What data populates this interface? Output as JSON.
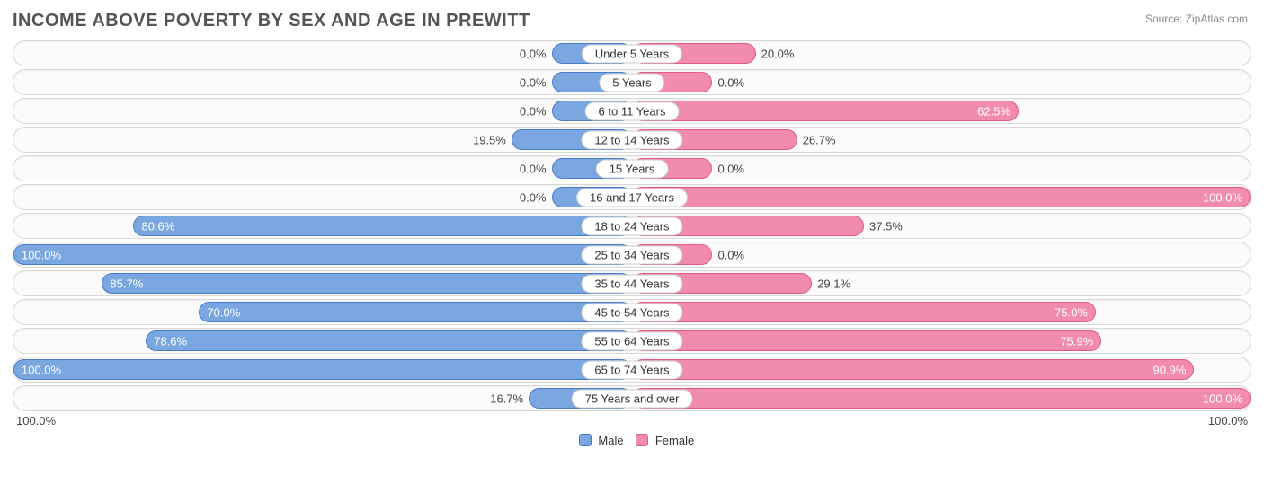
{
  "title": "INCOME ABOVE POVERTY BY SEX AND AGE IN PREWITT",
  "source": "Source: ZipAtlas.com",
  "colors": {
    "male_fill": "#7ba7e0",
    "male_border": "#4a7bc8",
    "female_fill": "#f28bb0",
    "female_border": "#e05a8a",
    "text": "#444444",
    "text_inside": "#ffffff"
  },
  "legend": {
    "male": "Male",
    "female": "Female"
  },
  "axis": {
    "left": "100.0%",
    "right": "100.0%"
  },
  "min_bar_pct": 13,
  "rows": [
    {
      "label": "Under 5 Years",
      "male": 0.0,
      "female": 20.0
    },
    {
      "label": "5 Years",
      "male": 0.0,
      "female": 0.0
    },
    {
      "label": "6 to 11 Years",
      "male": 0.0,
      "female": 62.5
    },
    {
      "label": "12 to 14 Years",
      "male": 19.5,
      "female": 26.7
    },
    {
      "label": "15 Years",
      "male": 0.0,
      "female": 0.0
    },
    {
      "label": "16 and 17 Years",
      "male": 0.0,
      "female": 100.0
    },
    {
      "label": "18 to 24 Years",
      "male": 80.6,
      "female": 37.5
    },
    {
      "label": "25 to 34 Years",
      "male": 100.0,
      "female": 0.0
    },
    {
      "label": "35 to 44 Years",
      "male": 85.7,
      "female": 29.1
    },
    {
      "label": "45 to 54 Years",
      "male": 70.0,
      "female": 75.0
    },
    {
      "label": "55 to 64 Years",
      "male": 78.6,
      "female": 75.9
    },
    {
      "label": "65 to 74 Years",
      "male": 100.0,
      "female": 90.9
    },
    {
      "label": "75 Years and over",
      "male": 16.7,
      "female": 100.0
    }
  ]
}
